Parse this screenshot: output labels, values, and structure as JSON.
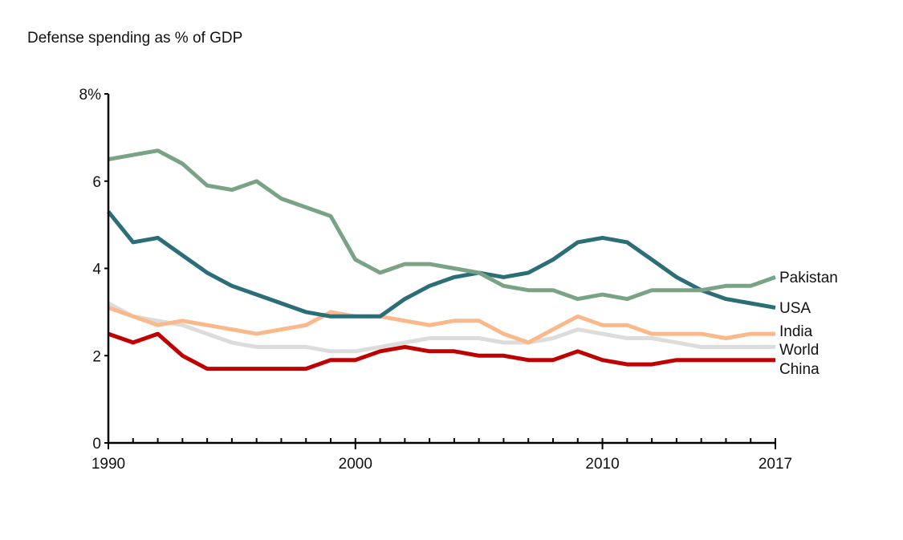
{
  "chart_data": {
    "type": "line",
    "title": "Defense spending as % of GDP",
    "xlabel": "",
    "ylabel": "",
    "xlim": [
      1990,
      2017
    ],
    "ylim": [
      0,
      8
    ],
    "x_ticks": [
      1990,
      2000,
      2010,
      2017
    ],
    "x_tick_labels": [
      "1990",
      "2000",
      "2010",
      "2017"
    ],
    "y_ticks": [
      0,
      2,
      4,
      6,
      8
    ],
    "y_tick_labels": [
      "0",
      "2",
      "4",
      "6",
      "8%"
    ],
    "grid": false,
    "legend": "direct labels at right end of lines",
    "x": [
      1990,
      1991,
      1992,
      1993,
      1994,
      1995,
      1996,
      1997,
      1998,
      1999,
      2000,
      2001,
      2002,
      2003,
      2004,
      2005,
      2006,
      2007,
      2008,
      2009,
      2010,
      2011,
      2012,
      2013,
      2014,
      2015,
      2016,
      2017
    ],
    "series": [
      {
        "name": "World",
        "color": "#dcdcdc",
        "values": [
          3.2,
          2.9,
          2.8,
          2.7,
          2.5,
          2.3,
          2.2,
          2.2,
          2.2,
          2.1,
          2.1,
          2.2,
          2.3,
          2.4,
          2.4,
          2.4,
          2.3,
          2.3,
          2.4,
          2.6,
          2.5,
          2.4,
          2.4,
          2.3,
          2.2,
          2.2,
          2.2,
          2.2
        ]
      },
      {
        "name": "India",
        "color": "#f9b98a",
        "values": [
          3.1,
          2.9,
          2.7,
          2.8,
          2.7,
          2.6,
          2.5,
          2.6,
          2.7,
          3.0,
          2.9,
          2.9,
          2.8,
          2.7,
          2.8,
          2.8,
          2.5,
          2.3,
          2.6,
          2.9,
          2.7,
          2.7,
          2.5,
          2.5,
          2.5,
          2.4,
          2.5,
          2.5
        ]
      },
      {
        "name": "China",
        "color": "#c00000",
        "values": [
          2.5,
          2.3,
          2.5,
          2.0,
          1.7,
          1.7,
          1.7,
          1.7,
          1.7,
          1.9,
          1.9,
          2.1,
          2.2,
          2.1,
          2.1,
          2.0,
          2.0,
          1.9,
          1.9,
          2.1,
          1.9,
          1.8,
          1.8,
          1.9,
          1.9,
          1.9,
          1.9,
          1.9
        ]
      },
      {
        "name": "USA",
        "color": "#2b6e78",
        "values": [
          5.3,
          4.6,
          4.7,
          4.3,
          3.9,
          3.6,
          3.4,
          3.2,
          3.0,
          2.9,
          2.9,
          2.9,
          3.3,
          3.6,
          3.8,
          3.9,
          3.8,
          3.9,
          4.2,
          4.6,
          4.7,
          4.6,
          4.2,
          3.8,
          3.5,
          3.3,
          3.2,
          3.1
        ]
      },
      {
        "name": "Pakistan",
        "color": "#7aa386",
        "values": [
          6.5,
          6.6,
          6.7,
          6.4,
          5.9,
          5.8,
          6.0,
          5.6,
          5.4,
          5.2,
          4.2,
          3.9,
          4.1,
          4.1,
          4.0,
          3.9,
          3.6,
          3.5,
          3.5,
          3.3,
          3.4,
          3.3,
          3.5,
          3.5,
          3.5,
          3.6,
          3.6,
          3.8
        ]
      }
    ],
    "labels_order": [
      "Pakistan",
      "USA",
      "India",
      "World",
      "China"
    ]
  }
}
